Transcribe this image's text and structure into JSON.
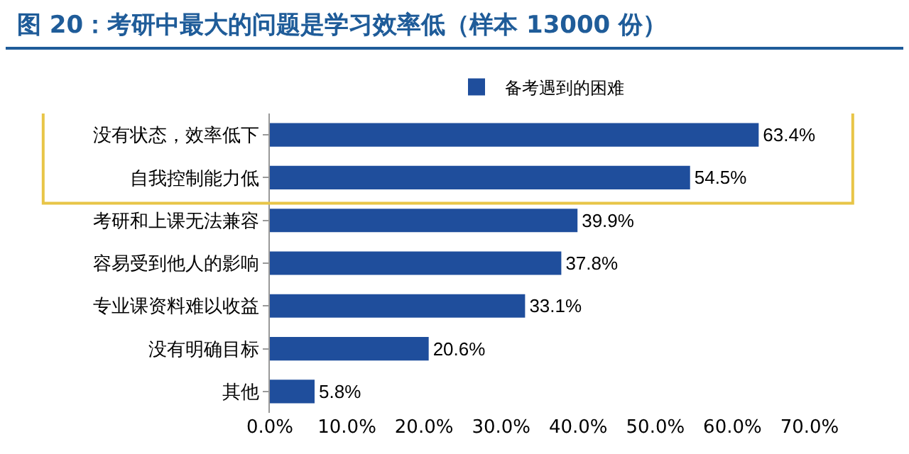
{
  "chart_data": {
    "type": "bar",
    "orientation": "horizontal",
    "title": "图 20：考研中最大的问题是学习效率低（样本 13000 份）",
    "categories": [
      "没有状态，效率低下",
      "自我控制能力低",
      "考研和上课无法兼容",
      "容易受到他人的影响",
      "专业课资料难以收益",
      "没有明确目标",
      "其他"
    ],
    "series": [
      {
        "name": "备考遇到的困难",
        "color": "#1f4e9c",
        "values": [
          63.4,
          54.5,
          39.9,
          37.8,
          33.1,
          20.6,
          5.8
        ],
        "value_labels": [
          "63.4%",
          "54.5%",
          "39.9%",
          "37.8%",
          "33.1%",
          "20.6%",
          "5.8%"
        ]
      }
    ],
    "xlim": [
      0,
      70
    ],
    "xticks": [
      {
        "value": 0,
        "label": "0.0%"
      },
      {
        "value": 10,
        "label": "10.0%"
      },
      {
        "value": 20,
        "label": "20.0%"
      },
      {
        "value": 30,
        "label": "30.0%"
      },
      {
        "value": 40,
        "label": "40.0%"
      },
      {
        "value": 50,
        "label": "50.0%"
      },
      {
        "value": 60,
        "label": "60.0%"
      },
      {
        "value": 70,
        "label": "70.0%"
      }
    ],
    "grid": false,
    "legend": "top"
  }
}
